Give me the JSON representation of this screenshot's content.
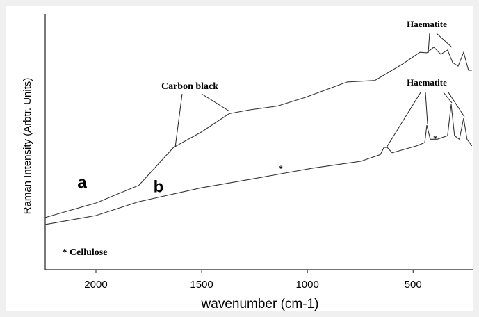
{
  "chart_data": {
    "type": "line",
    "x_label": "wavenumber (cm-1)",
    "y_label": "Raman Intensity (Arbtr. Units)",
    "xlim": [
      2240,
      218
    ],
    "xticks": [
      2000,
      1500,
      1000,
      500
    ],
    "ylim": [
      0,
      100
    ],
    "series": [
      {
        "name": "a",
        "color": "#333333",
        "x": [
          2240,
          2000,
          1797,
          1633,
          1502,
          1370,
          1272,
          1141,
          1009,
          812,
          681,
          550,
          468,
          435,
          402,
          369,
          337,
          313,
          287,
          261,
          238,
          222
        ],
        "values": [
          20.4,
          26.1,
          33,
          47.8,
          53.8,
          61,
          62.5,
          64,
          67.4,
          73.4,
          74,
          80.4,
          85,
          84.8,
          87,
          84.2,
          85.9,
          81,
          79.6,
          85,
          78,
          78
        ]
      },
      {
        "name": "b",
        "color": "#333333",
        "x": [
          2240,
          2000,
          1797,
          1502,
          1272,
          1124,
          976,
          747,
          655,
          638,
          622,
          599,
          484,
          445,
          435,
          419,
          386,
          337,
          320,
          304,
          281,
          261,
          245,
          222
        ],
        "values": [
          17.7,
          21.2,
          26.6,
          32,
          35.3,
          37.5,
          39.7,
          42.4,
          45,
          47.8,
          47.8,
          45.7,
          48.4,
          49.7,
          56.5,
          51,
          51,
          52.4,
          64.7,
          52.4,
          51,
          59.2,
          51,
          48.4
        ]
      }
    ],
    "annotations": [
      "Haematite",
      "Carbon black",
      "Haematite",
      "a",
      "b",
      "* Cellulose",
      "*",
      "*"
    ]
  }
}
